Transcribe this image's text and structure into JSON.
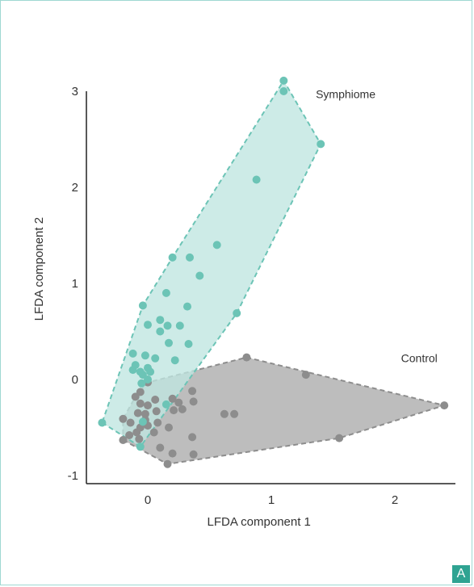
{
  "panel_label": "A",
  "colors": {
    "symphiome": "#6cc4b6",
    "symphiome_fill": "#bfe6e0",
    "control": "#8d8d8d",
    "control_fill": "#bdbdbd",
    "badge": "#2fa392"
  },
  "chart_data": {
    "type": "scatter",
    "title": "",
    "xlabel": "LFDA component 1",
    "ylabel": "LFDA component 2",
    "xlim": [
      -0.45,
      2.5
    ],
    "ylim": [
      -1.05,
      3.1
    ],
    "xticks": [
      0,
      1,
      2
    ],
    "yticks": [
      -1,
      0,
      1,
      2,
      3
    ],
    "grid": false,
    "series": [
      {
        "name": "Symphiome",
        "hull": true,
        "points": [
          [
            1.1,
            3.11
          ],
          [
            1.1,
            3.0
          ],
          [
            1.4,
            2.45
          ],
          [
            0.88,
            2.08
          ],
          [
            0.56,
            1.4
          ],
          [
            0.2,
            1.27
          ],
          [
            0.34,
            1.27
          ],
          [
            0.42,
            1.08
          ],
          [
            0.15,
            0.9
          ],
          [
            -0.04,
            0.77
          ],
          [
            0.1,
            0.62
          ],
          [
            0.16,
            0.56
          ],
          [
            0.26,
            0.56
          ],
          [
            0.32,
            0.76
          ],
          [
            0.0,
            0.57
          ],
          [
            0.1,
            0.5
          ],
          [
            0.17,
            0.38
          ],
          [
            0.33,
            0.37
          ],
          [
            0.72,
            0.69
          ],
          [
            -0.12,
            0.27
          ],
          [
            -0.02,
            0.25
          ],
          [
            0.06,
            0.22
          ],
          [
            0.22,
            0.2
          ],
          [
            -0.1,
            0.15
          ],
          [
            0.0,
            0.12
          ],
          [
            0.02,
            0.08
          ],
          [
            -0.12,
            0.1
          ],
          [
            -0.06,
            0.08
          ],
          [
            -0.04,
            0.05
          ],
          [
            0.0,
            0.0
          ],
          [
            -0.05,
            -0.04
          ],
          [
            0.15,
            -0.26
          ],
          [
            -0.04,
            -0.44
          ],
          [
            -0.37,
            -0.45
          ],
          [
            -0.06,
            -0.7
          ]
        ]
      },
      {
        "name": "Control",
        "hull": true,
        "points": [
          [
            0.8,
            0.23
          ],
          [
            1.28,
            0.05
          ],
          [
            2.4,
            -0.27
          ],
          [
            1.55,
            -0.61
          ],
          [
            0.16,
            -0.88
          ],
          [
            -0.2,
            -0.63
          ],
          [
            -0.2,
            -0.41
          ],
          [
            0.36,
            -0.12
          ],
          [
            0.37,
            -0.23
          ],
          [
            0.06,
            -0.21
          ],
          [
            0.2,
            -0.2
          ],
          [
            0.25,
            -0.24
          ],
          [
            0.28,
            -0.31
          ],
          [
            0.21,
            -0.32
          ],
          [
            0.36,
            -0.6
          ],
          [
            0.37,
            -0.78
          ],
          [
            0.2,
            -0.77
          ],
          [
            0.1,
            -0.71
          ],
          [
            0.17,
            -0.5
          ],
          [
            0.08,
            -0.45
          ],
          [
            0.05,
            -0.55
          ],
          [
            0.0,
            -0.48
          ],
          [
            -0.08,
            -0.35
          ],
          [
            -0.02,
            -0.36
          ],
          [
            0.07,
            -0.33
          ],
          [
            -0.06,
            -0.25
          ],
          [
            -0.1,
            -0.18
          ],
          [
            -0.06,
            -0.13
          ],
          [
            0.0,
            -0.03
          ],
          [
            0.0,
            -0.27
          ],
          [
            -0.06,
            -0.5
          ],
          [
            -0.09,
            -0.55
          ],
          [
            -0.14,
            -0.45
          ],
          [
            -0.15,
            -0.58
          ],
          [
            0.62,
            -0.36
          ],
          [
            0.7,
            -0.36
          ],
          [
            -0.07,
            -0.62
          ],
          [
            -0.02,
            -0.42
          ]
        ]
      }
    ]
  }
}
